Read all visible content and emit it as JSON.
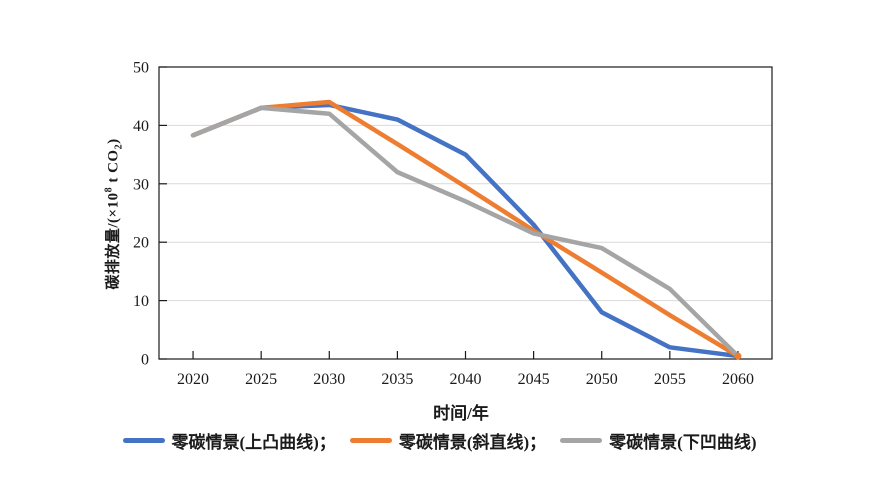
{
  "figure": {
    "background_color": "#ffffff",
    "text_color": "#1a1a1a"
  },
  "chart_data": {
    "type": "line",
    "title": "",
    "xlabel": "时间/年",
    "ylabel": "碳排放量/(×10⁸ t CO₂)",
    "ylabel_parts": {
      "prefix": "碳排放量/(×10",
      "superscript": "8",
      "mid": " t CO",
      "subscript": "2",
      "suffix": ")"
    },
    "x": [
      2020,
      2025,
      2030,
      2035,
      2040,
      2045,
      2050,
      2055,
      2060
    ],
    "xlim": [
      2017.5,
      2062.5
    ],
    "ylim": [
      0,
      50
    ],
    "yticks": [
      0,
      10,
      20,
      30,
      40,
      50
    ],
    "xticks": [
      2020,
      2025,
      2030,
      2035,
      2040,
      2045,
      2050,
      2055,
      2060
    ],
    "grid": "horizontal",
    "gridline_color": "#d9d9d9",
    "axis_color": "#1a1a1a",
    "legend_position": "bottom",
    "series": [
      {
        "name": "零碳情景(上凸曲线)",
        "legend_label": "零碳情景(上凸曲线)；",
        "color": "#4472C4",
        "values": [
          38.3,
          43,
          43.5,
          41,
          35,
          23,
          8,
          2,
          0.5
        ],
        "end_marker": false
      },
      {
        "name": "零碳情景(斜直线)",
        "legend_label": "零碳情景(斜直线)；",
        "color": "#ED7D31",
        "values": [
          38.3,
          43,
          44,
          36.8,
          29.5,
          22,
          14.8,
          7.5,
          0.5
        ],
        "end_marker": true
      },
      {
        "name": "零碳情景(下凹曲线)",
        "legend_label": "零碳情景(下凹曲线)",
        "color": "#A5A5A5",
        "values": [
          38.3,
          43,
          42,
          32,
          27,
          21.5,
          19,
          12,
          0.5
        ],
        "end_marker": false
      }
    ]
  }
}
